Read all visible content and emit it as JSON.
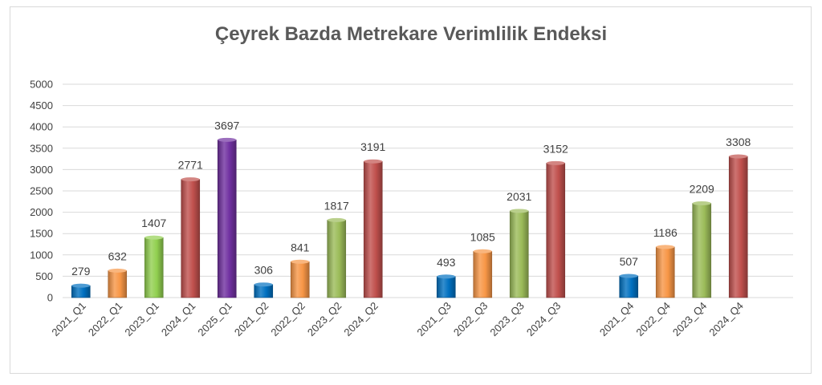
{
  "chart_data": {
    "type": "bar",
    "title": "Çeyrek Bazda Metrekare Verimlilik Endeksi",
    "xlabel": "",
    "ylabel": "",
    "ylim": [
      0,
      5000
    ],
    "yticks": [
      0,
      500,
      1000,
      1500,
      2000,
      2500,
      3000,
      3500,
      4000,
      4500,
      5000
    ],
    "grid": true,
    "legend": "none",
    "groups": [
      {
        "bars": [
          {
            "label": "2021_Q1",
            "value": 279,
            "color": "#0070C0"
          },
          {
            "label": "2022_Q1",
            "value": 632,
            "color": "#F79646"
          },
          {
            "label": "2023_Q1",
            "value": 1407,
            "color": "#92D050"
          },
          {
            "label": "2024_Q1",
            "value": 2771,
            "color": "#C0504D"
          },
          {
            "label": "2025_Q1",
            "value": 3697,
            "color": "#7030A0"
          }
        ]
      },
      {
        "bars": [
          {
            "label": "2021_Q2",
            "value": 306,
            "color": "#0070C0"
          },
          {
            "label": "2022_Q2",
            "value": 841,
            "color": "#F79646"
          },
          {
            "label": "2023_Q2",
            "value": 1817,
            "color": "#9BBB59"
          },
          {
            "label": "2024_Q2",
            "value": 3191,
            "color": "#C0504D"
          }
        ]
      },
      {
        "bars": [
          {
            "label": "2021_Q3",
            "value": 493,
            "color": "#0070C0"
          },
          {
            "label": "2022_Q3",
            "value": 1085,
            "color": "#F79646"
          },
          {
            "label": "2023_Q3",
            "value": 2031,
            "color": "#9BBB59"
          },
          {
            "label": "2024_Q3",
            "value": 3152,
            "color": "#C0504D"
          }
        ]
      },
      {
        "bars": [
          {
            "label": "2021_Q4",
            "value": 507,
            "color": "#0070C0"
          },
          {
            "label": "2022_Q4",
            "value": 1186,
            "color": "#F79646"
          },
          {
            "label": "2023_Q4",
            "value": 2209,
            "color": "#9BBB59"
          },
          {
            "label": "2024_Q4",
            "value": 3308,
            "color": "#C0504D"
          }
        ]
      }
    ]
  }
}
